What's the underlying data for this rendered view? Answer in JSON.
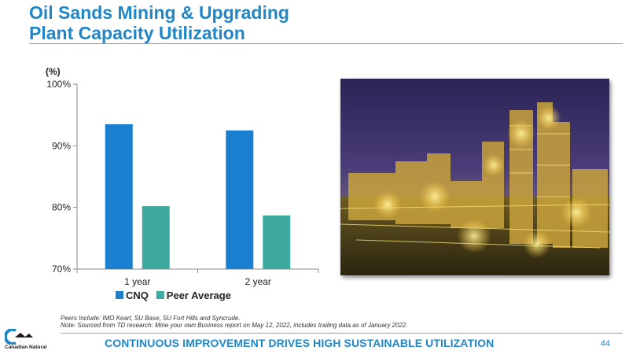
{
  "slide": {
    "title_line1": "Oil Sands Mining & Upgrading",
    "title_line2": "Plant Capacity Utilization",
    "footnote_peers": "Peers Include: IMO Kearl, SU Base, SU Fort Hills and Syncrude.",
    "footnote_note": "Note: Sourced from TD research: Mine your own Business report on May 12, 2022, includes trailing data as of January 2022.",
    "tagline": "CONTINUOUS IMPROVEMENT DRIVES HIGH SUSTAINABLE UTILIZATION",
    "page_number": "44",
    "logo_text": "Canadian Natural",
    "photo_icon": "oil-sands-plant-night-photo"
  },
  "colors": {
    "accent": "#1f86c8",
    "cnq": "#1b7fcf",
    "peer": "#3ea99f"
  },
  "chart_data": {
    "type": "bar",
    "unit_label": "(%)",
    "categories": [
      "1 year",
      "2 year"
    ],
    "series": [
      {
        "name": "CNQ",
        "values": [
          93.5,
          92.5
        ]
      },
      {
        "name": "Peer Average",
        "values": [
          80.2,
          78.7
        ]
      }
    ],
    "ylim": [
      70,
      100
    ],
    "yticks": [
      70,
      80,
      90,
      100
    ],
    "ytick_labels": [
      "70%",
      "80%",
      "90%",
      "100%"
    ],
    "legend": "bottom-left",
    "grid": false
  }
}
